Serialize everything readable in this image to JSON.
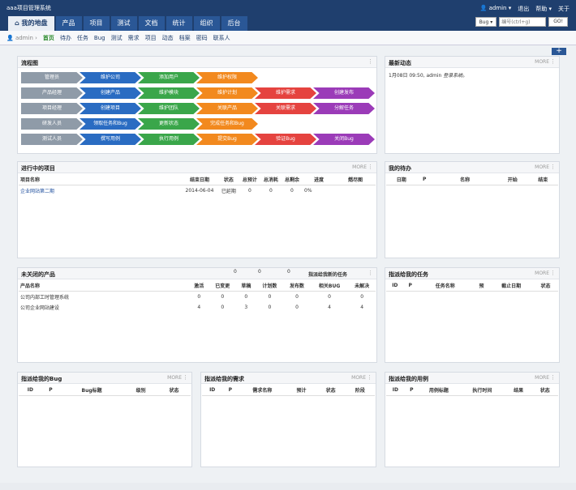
{
  "header": {
    "system_title": "aaa项目管理系统",
    "user": "admin",
    "logout": "退出",
    "help": "帮助",
    "about": "关于",
    "tabs": [
      "我的地盘",
      "产品",
      "项目",
      "测试",
      "文档",
      "统计",
      "组织",
      "后台"
    ],
    "search_type": "Bug",
    "search_placeholder": "编号(ctrl+g)",
    "search_go": "GO!"
  },
  "subnav": {
    "user": "admin",
    "items": [
      "首页",
      "待办",
      "任务",
      "Bug",
      "测试",
      "需求",
      "项目",
      "动态",
      "档案",
      "密码",
      "联系人"
    ]
  },
  "more_label": "MORE",
  "flow": {
    "title": "流程图",
    "rows": [
      [
        "管理员",
        "维护公司",
        "添加用户",
        "维护权限"
      ],
      [
        "产品经理",
        "创建产品",
        "维护模块",
        "维护计划",
        "维护需求",
        "创建发布"
      ],
      [
        "项目经理",
        "创建项目",
        "维护团队",
        "关联产品",
        "关联需求",
        "分解任务"
      ],
      [
        "研发人员",
        "领取任务和Bug",
        "更新状态",
        "完成任务和Bug"
      ],
      [
        "测试人员",
        "撰写用例",
        "执行用例",
        "提交Bug",
        "验证Bug",
        "关闭Bug"
      ]
    ]
  },
  "dynamic": {
    "title": "最新动态",
    "entry_prefix": "1月08日 09:50, admin",
    "entry_action": "登录系统",
    "entry_suffix": "。"
  },
  "projects": {
    "title": "进行中的项目",
    "headers": [
      "项目名称",
      "结束日期",
      "状态",
      "总预计",
      "总消耗",
      "总剩余",
      "进度",
      "燃尽图"
    ],
    "rows": [
      {
        "name": "企业网站第二期",
        "end": "2014-06-04",
        "status": "已延期",
        "estimate": "0",
        "consumed": "0",
        "left": "0",
        "progress": "0%"
      }
    ]
  },
  "todo": {
    "title": "我的待办",
    "headers": [
      "日期",
      "P",
      "名称",
      "开始",
      "结束"
    ]
  },
  "products": {
    "title": "未关闭的产品",
    "headers": [
      "产品名称",
      "激活",
      "已变更",
      "草稿",
      "计划数",
      "发布数",
      "相关BUG",
      "未解决"
    ],
    "rows": [
      {
        "name": "公司内部工时管理系统",
        "vals": [
          "0",
          "0",
          "0",
          "0",
          "0",
          "0",
          "0"
        ]
      },
      {
        "name": "公司企业网站建设",
        "vals": [
          "4",
          "0",
          "3",
          "0",
          "0",
          "4",
          "4"
        ]
      }
    ]
  },
  "tasks_overlap": {
    "title": "指派给我新的任务",
    "nums": [
      "0",
      "0",
      "0"
    ]
  },
  "my_tasks": {
    "title": "指派给我的任务",
    "headers": [
      "ID",
      "P",
      "任务名称",
      "预",
      "截止日期",
      "状态"
    ]
  },
  "my_bugs": {
    "title": "指派给我的Bug",
    "headers": [
      "ID",
      "P",
      "Bug标题",
      "级别",
      "状态"
    ]
  },
  "my_stories": {
    "title": "指派给我的需求",
    "headers": [
      "ID",
      "P",
      "需求名称",
      "预计",
      "状态",
      "阶段"
    ]
  },
  "my_cases": {
    "title": "指派给我的用例",
    "headers": [
      "ID",
      "P",
      "用例标题",
      "执行时间",
      "结果",
      "状态"
    ]
  }
}
